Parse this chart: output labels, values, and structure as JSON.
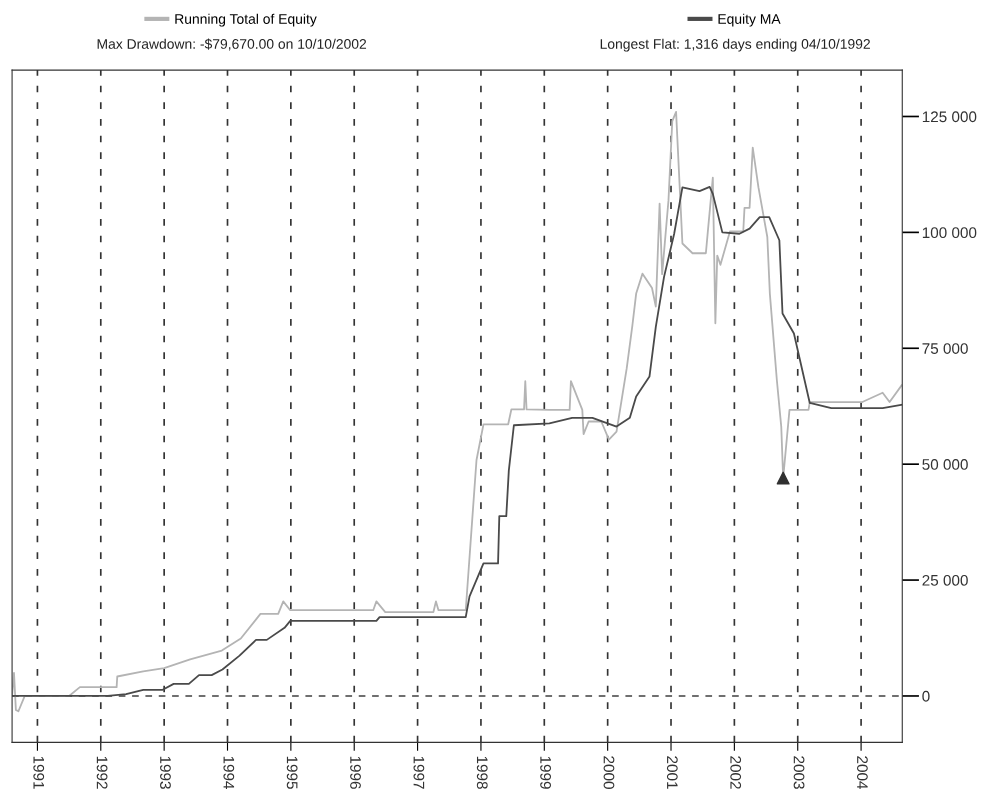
{
  "chart_data": {
    "type": "line",
    "xlim": [
      1990.6,
      2004.65
    ],
    "xticks": [
      1991,
      1992,
      1993,
      1994,
      1995,
      1996,
      1997,
      1998,
      1999,
      2000,
      2001,
      2002,
      2003,
      2004
    ],
    "ylim": [
      -10000,
      135000
    ],
    "yticks": [
      {
        "value": 0,
        "label": "0"
      },
      {
        "value": 25000,
        "label": "25 000"
      },
      {
        "value": 50000,
        "label": "50 000"
      },
      {
        "value": 75000,
        "label": "75 000"
      },
      {
        "value": 100000,
        "label": "100 000"
      },
      {
        "value": 125000,
        "label": "125 000"
      }
    ],
    "grid": "x",
    "legend": "top",
    "line_style": "solid",
    "ref_lines": [
      {
        "axis": "y",
        "value": 0,
        "line_style": "dashed",
        "color": "#404040"
      }
    ],
    "annotations": [
      "Max Drawdown: -$79,670.00 on 10/10/2002",
      "Longest Flat: 1,316 days ending 04/10/1992"
    ],
    "series": [
      {
        "name": "Running Total of Equity",
        "color": "#b4b4b4",
        "x": [
          1990.6,
          1990.63,
          1990.66,
          1990.7,
          1990.8,
          1990.9,
          1991.0,
          1991.5,
          1991.67,
          1992.25,
          1992.26,
          1992.67,
          1993.0,
          1993.41,
          1993.91,
          1994.21,
          1994.52,
          1994.8,
          1994.88,
          1994.99,
          1996.3,
          1996.35,
          1996.49,
          1997.25,
          1997.29,
          1997.33,
          1997.76,
          1997.93,
          1998.04,
          1998.43,
          1998.48,
          1998.68,
          1998.7,
          1998.72,
          1999.08,
          1999.4,
          1999.42,
          1999.6,
          1999.62,
          1999.7,
          1999.76,
          1999.9,
          2000.02,
          2000.14,
          2000.3,
          2000.39,
          2000.45,
          2000.55,
          2000.7,
          2000.76,
          2000.82,
          2000.86,
          2000.96,
          2001.02,
          2001.08,
          2001.18,
          2001.34,
          2001.55,
          2001.58,
          2001.66,
          2001.7,
          2001.73,
          2001.78,
          2001.93,
          2002.14,
          2002.16,
          2002.24,
          2002.29,
          2002.38,
          2002.52,
          2002.56,
          2002.67,
          2002.74,
          2002.77,
          2002.87,
          2003.17,
          2003.19,
          2004.02,
          2004.34,
          2004.45,
          2004.64
        ],
        "values": [
          0,
          5000,
          -3000,
          -3300,
          0,
          0,
          0,
          0,
          1900,
          1900,
          4200,
          5300,
          6000,
          7900,
          9800,
          12400,
          17700,
          17700,
          20400,
          18500,
          18500,
          20400,
          18100,
          18100,
          20400,
          18500,
          18500,
          50900,
          58600,
          58600,
          61800,
          61800,
          67900,
          61800,
          61700,
          61700,
          67900,
          61700,
          56500,
          59200,
          59200,
          59200,
          55300,
          57000,
          70600,
          79900,
          86800,
          91100,
          88000,
          84000,
          106200,
          91000,
          106900,
          124000,
          126000,
          97600,
          95500,
          95500,
          100000,
          111800,
          80400,
          95000,
          93000,
          100200,
          100200,
          105300,
          105300,
          118300,
          109700,
          99000,
          86800,
          68200,
          58100,
          47000,
          61700,
          61700,
          63400,
          63400,
          65400,
          63400,
          67000
        ]
      },
      {
        "name": "Equity MA",
        "color": "#4a4a4a",
        "x": [
          1990.6,
          1992.11,
          1992.4,
          1992.67,
          1992.97,
          1993.15,
          1993.39,
          1993.55,
          1993.75,
          1993.92,
          1994.19,
          1994.45,
          1994.62,
          1994.9,
          1994.99,
          1996.35,
          1996.4,
          1997.76,
          1997.82,
          1998.04,
          1998.27,
          1998.29,
          1998.4,
          1998.44,
          1998.52,
          1999.08,
          1999.44,
          1999.76,
          2000.14,
          2000.35,
          2000.45,
          2000.66,
          2000.76,
          2000.89,
          2001.05,
          2001.18,
          2001.45,
          2001.61,
          2001.66,
          2001.81,
          2002.08,
          2002.24,
          2002.4,
          2002.55,
          2002.71,
          2002.76,
          2002.94,
          2003.19,
          2003.53,
          2004.34,
          2004.64
        ],
        "values": [
          0,
          0,
          400,
          1300,
          1300,
          2600,
          2600,
          4500,
          4500,
          5700,
          8700,
          12100,
          12100,
          14700,
          16200,
          16200,
          17000,
          17000,
          21500,
          28600,
          28600,
          38800,
          38800,
          48600,
          58400,
          58800,
          60000,
          60000,
          58100,
          60000,
          64600,
          68900,
          79600,
          90400,
          99700,
          109700,
          108900,
          109800,
          108300,
          100000,
          99700,
          100800,
          103300,
          103300,
          98300,
          82500,
          78200,
          63200,
          62100,
          62100,
          62800
        ]
      },
      {
        "type": "scatter",
        "marker": "triangle",
        "color": "#303030",
        "x": [
          2002.77
        ],
        "values": [
          47000
        ]
      }
    ]
  }
}
